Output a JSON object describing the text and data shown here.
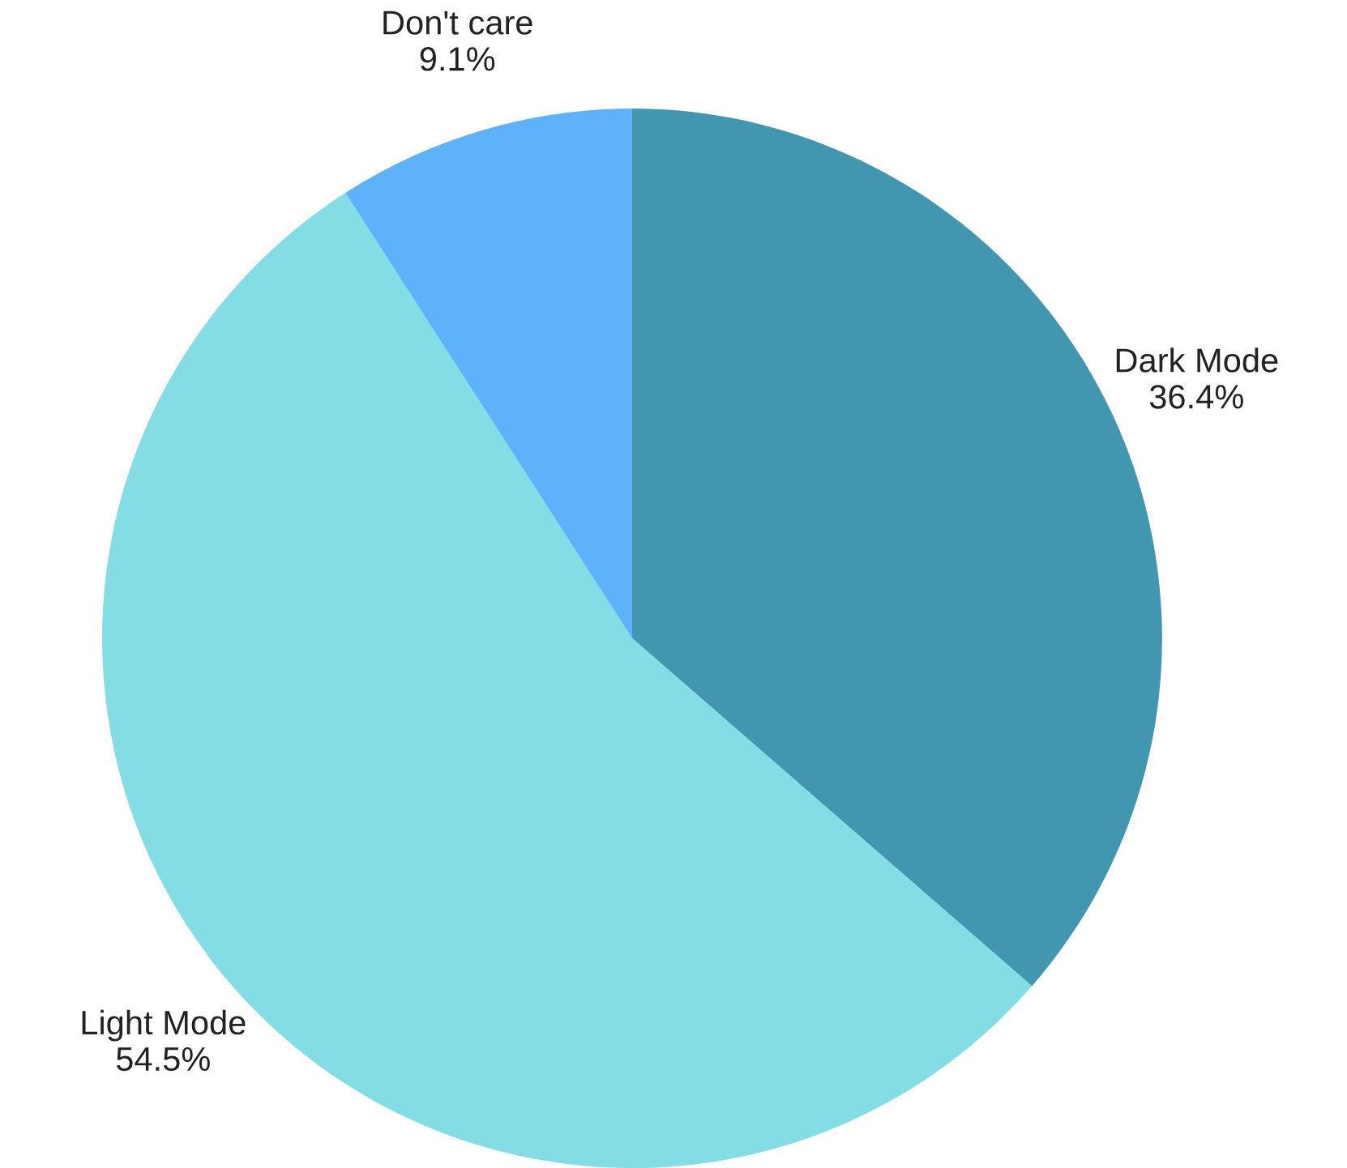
{
  "chart_data": {
    "type": "pie",
    "categories": [
      "Dark Mode",
      "Light Mode",
      "Don't care"
    ],
    "values": [
      36.4,
      54.5,
      9.1
    ],
    "value_labels": [
      "36.4%",
      "54.5%",
      "9.1%"
    ],
    "colors": [
      "#4396b0",
      "#84dde4",
      "#5eb2f9"
    ]
  }
}
